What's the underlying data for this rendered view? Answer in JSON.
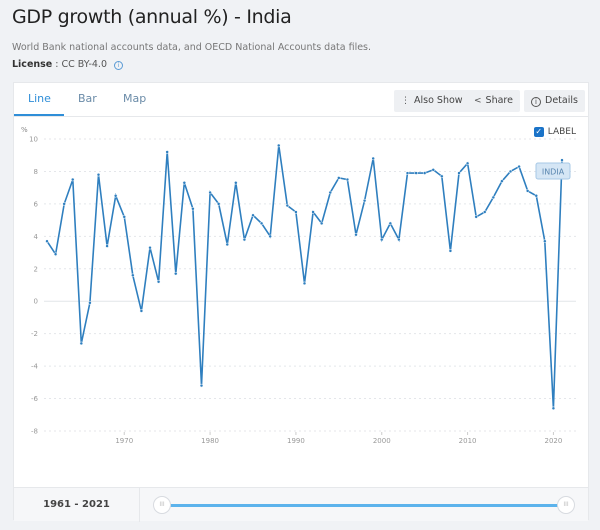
{
  "header": {
    "title": "GDP growth (annual %) - India",
    "source": "World Bank national accounts data, and OECD National Accounts data files.",
    "license_label": "License",
    "license_value": ": CC BY-4.0",
    "license_info_icon": "info-circle-icon"
  },
  "tabs": [
    {
      "label": "Line",
      "active": true
    },
    {
      "label": "Bar",
      "active": false
    },
    {
      "label": "Map",
      "active": false
    }
  ],
  "toolbar": {
    "also_show": {
      "label": "Also Show",
      "icon": "vertical-dots-icon"
    },
    "share": {
      "label": "Share",
      "icon": "share-icon"
    },
    "details": {
      "label": "Details",
      "icon": "info-circle-icon"
    }
  },
  "label_toggle": {
    "label": "LABEL",
    "checked": true
  },
  "range": {
    "label": "1961 - 2021",
    "start": 1961,
    "end": 2021
  },
  "colors": {
    "line": "#2f7fbf",
    "accent": "#2f8ed8",
    "slider": "#5cb3ec"
  },
  "chart_data": {
    "type": "line",
    "title": "GDP growth (annual %) - India",
    "ylabel": "%",
    "xlabel": "",
    "ylim": [
      -8,
      10
    ],
    "xlim": [
      1961,
      2021
    ],
    "yticks": [
      10,
      8,
      6,
      4,
      2,
      0,
      -2,
      -4,
      -6,
      -8
    ],
    "xticks": [
      1970,
      1980,
      1990,
      2000,
      2010,
      2020
    ],
    "grid": true,
    "series": [
      {
        "name": "INDIA",
        "x": [
          1961,
          1962,
          1963,
          1964,
          1965,
          1966,
          1967,
          1968,
          1969,
          1970,
          1971,
          1972,
          1973,
          1974,
          1975,
          1976,
          1977,
          1978,
          1979,
          1980,
          1981,
          1982,
          1983,
          1984,
          1985,
          1986,
          1987,
          1988,
          1989,
          1990,
          1991,
          1992,
          1993,
          1994,
          1995,
          1996,
          1997,
          1998,
          1999,
          2000,
          2001,
          2002,
          2003,
          2004,
          2005,
          2006,
          2007,
          2008,
          2009,
          2010,
          2011,
          2012,
          2013,
          2014,
          2015,
          2016,
          2017,
          2018,
          2019,
          2020,
          2021
        ],
        "values": [
          3.7,
          2.9,
          6.0,
          7.5,
          -2.6,
          -0.1,
          7.8,
          3.4,
          6.5,
          5.2,
          1.6,
          -0.6,
          3.3,
          1.2,
          9.2,
          1.7,
          7.3,
          5.7,
          -5.2,
          6.7,
          6.0,
          3.5,
          7.3,
          3.8,
          5.3,
          4.8,
          4.0,
          9.6,
          5.9,
          5.5,
          1.1,
          5.5,
          4.8,
          6.7,
          7.6,
          7.5,
          4.1,
          6.2,
          8.8,
          3.8,
          4.8,
          3.8,
          7.9,
          7.9,
          7.9,
          8.1,
          7.7,
          3.1,
          7.9,
          8.5,
          5.2,
          5.5,
          6.4,
          7.4,
          8.0,
          8.3,
          6.8,
          6.5,
          3.7,
          -6.6,
          8.7
        ]
      }
    ],
    "annotations": [
      "INDIA"
    ]
  }
}
